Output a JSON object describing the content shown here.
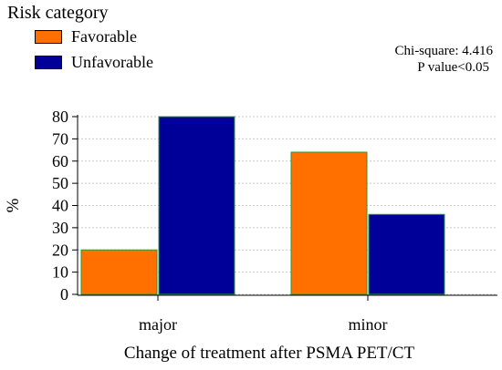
{
  "legend": {
    "title": "Risk category",
    "items": [
      {
        "label": "Favorable",
        "color": "#FF7000"
      },
      {
        "label": "Unfavorable",
        "color": "#000099"
      }
    ]
  },
  "annotations": {
    "line1": "Chi-square: 4.416",
    "line2": "P value<0.05"
  },
  "chart_data": {
    "type": "bar",
    "categories": [
      "major",
      "minor"
    ],
    "series": [
      {
        "name": "Favorable",
        "values": [
          20,
          64
        ],
        "color": "#FF7000"
      },
      {
        "name": "Unfavorable",
        "values": [
          80,
          36
        ],
        "color": "#000099"
      }
    ],
    "xlabel": "Change of treatment after PSMA PET/CT",
    "ylabel": "%",
    "ylim": [
      0,
      80
    ],
    "yticks": [
      0,
      10,
      20,
      30,
      40,
      50,
      60,
      70,
      80
    ],
    "grid": true,
    "legend_position": "top-left"
  }
}
